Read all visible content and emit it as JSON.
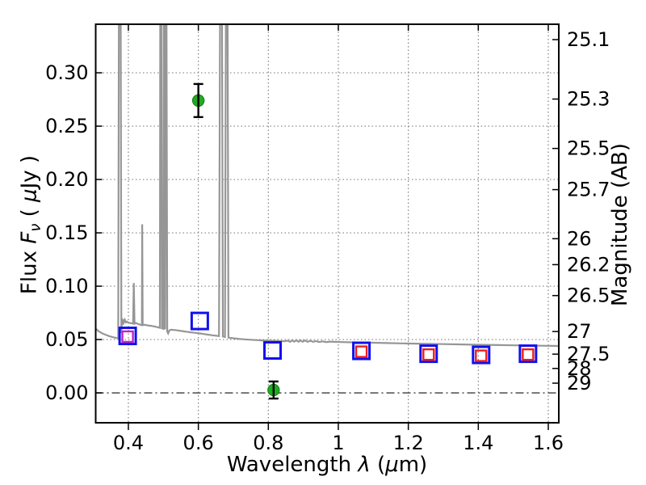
{
  "labels": {
    "xlabel": {
      "word": "Wavelength ",
      "lambda": "λ",
      "open": " (",
      "mu": "μ",
      "close": "m)"
    },
    "ylabel_left": {
      "word": "Flux ",
      "f": "F",
      "nu": "ν",
      "open": " ( ",
      "mu": "μ",
      "close": "Jy )"
    },
    "ylabel_right": {
      "text": "Magnitude (AB)"
    }
  },
  "chart_data": {
    "type": "line",
    "title": "",
    "xlabel": "Wavelength λ (μm)",
    "ylabel": "Flux Fν ( μJy )",
    "ylabel_right": "Magnitude (AB)",
    "xlim": [
      0.3066,
      1.63
    ],
    "ylim": [
      -0.028,
      0.3455
    ],
    "grid": "dotted",
    "colors": {
      "spectrum": "#969696",
      "grid": "#808080",
      "zero_line": "#3a3a3a",
      "green_points": "#22aa22",
      "blue_squares": "#1010ee",
      "red_squares": "#ee1c1c",
      "magenta_squares": "#c520c5",
      "errorbar": "#000000",
      "frame": "#000000"
    },
    "x_ticks": [
      {
        "v": 0.4,
        "label": "0.4"
      },
      {
        "v": 0.6,
        "label": "0.6"
      },
      {
        "v": 0.8,
        "label": "0.8"
      },
      {
        "v": 1.0,
        "label": "1"
      },
      {
        "v": 1.2,
        "label": "1.2"
      },
      {
        "v": 1.4,
        "label": "1.4"
      },
      {
        "v": 1.6,
        "label": "1.6"
      }
    ],
    "y_ticks_flux": [
      {
        "v": 0.0,
        "label": "0.00"
      },
      {
        "v": 0.05,
        "label": "0.05"
      },
      {
        "v": 0.1,
        "label": "0.10"
      },
      {
        "v": 0.15,
        "label": "0.15"
      },
      {
        "v": 0.2,
        "label": "0.20"
      },
      {
        "v": 0.25,
        "label": "0.25"
      },
      {
        "v": 0.3,
        "label": "0.30"
      }
    ],
    "y_ticks_mag": [
      {
        "label": "25.1",
        "flux": 0.3311
      },
      {
        "label": "25.3",
        "flux": 0.2754
      },
      {
        "label": "25.5",
        "flux": 0.2291
      },
      {
        "label": "25.7",
        "flux": 0.1905
      },
      {
        "label": "26",
        "flux": 0.1445
      },
      {
        "label": "26.2",
        "flux": 0.1202
      },
      {
        "label": "26.5",
        "flux": 0.0912
      },
      {
        "label": "27",
        "flux": 0.0575
      },
      {
        "label": "27.5",
        "flux": 0.0363
      },
      {
        "label": "28",
        "flux": 0.0229
      },
      {
        "label": "29",
        "flux": 0.0091
      }
    ],
    "series": [
      {
        "name": "model-spectrum",
        "type": "line",
        "color": "#969696",
        "points": [
          [
            0.307,
            0.06
          ],
          [
            0.315,
            0.0578
          ],
          [
            0.325,
            0.0558
          ],
          [
            0.335,
            0.0545
          ],
          [
            0.345,
            0.0532
          ],
          [
            0.355,
            0.0522
          ],
          [
            0.365,
            0.0515
          ],
          [
            0.371,
            0.0512
          ],
          [
            0.3735,
            0.45
          ],
          [
            0.3775,
            0.45
          ],
          [
            0.38,
            0.056
          ],
          [
            0.3815,
            0.07
          ],
          [
            0.383,
            0.064
          ],
          [
            0.385,
            0.069
          ],
          [
            0.387,
            0.066
          ],
          [
            0.39,
            0.0685
          ],
          [
            0.393,
            0.066
          ],
          [
            0.396,
            0.0668
          ],
          [
            0.4,
            0.0658
          ],
          [
            0.405,
            0.0655
          ],
          [
            0.41,
            0.0652
          ],
          [
            0.4135,
            0.065
          ],
          [
            0.4155,
            0.103
          ],
          [
            0.4175,
            0.0648
          ],
          [
            0.422,
            0.0655
          ],
          [
            0.428,
            0.0645
          ],
          [
            0.433,
            0.064
          ],
          [
            0.437,
            0.0635
          ],
          [
            0.4385,
            0.0635
          ],
          [
            0.4396,
            0.158
          ],
          [
            0.441,
            0.0635
          ],
          [
            0.447,
            0.0638
          ],
          [
            0.455,
            0.0632
          ],
          [
            0.465,
            0.0628
          ],
          [
            0.475,
            0.0622
          ],
          [
            0.485,
            0.0615
          ],
          [
            0.49,
            0.061
          ],
          [
            0.4914,
            0.45
          ],
          [
            0.4934,
            0.45
          ],
          [
            0.496,
            0.0605
          ],
          [
            0.5,
            0.06
          ],
          [
            0.5013,
            0.45
          ],
          [
            0.5033,
            0.45
          ],
          [
            0.505,
            0.0595
          ],
          [
            0.5062,
            0.45
          ],
          [
            0.5082,
            0.45
          ],
          [
            0.511,
            0.0575
          ],
          [
            0.5135,
            0.0558
          ],
          [
            0.517,
            0.0585
          ],
          [
            0.522,
            0.0592
          ],
          [
            0.53,
            0.059
          ],
          [
            0.54,
            0.0586
          ],
          [
            0.552,
            0.058
          ],
          [
            0.565,
            0.0574
          ],
          [
            0.578,
            0.0568
          ],
          [
            0.59,
            0.0563
          ],
          [
            0.603,
            0.0558
          ],
          [
            0.615,
            0.0552
          ],
          [
            0.628,
            0.0546
          ],
          [
            0.64,
            0.054
          ],
          [
            0.652,
            0.0535
          ],
          [
            0.659,
            0.0532
          ],
          [
            0.6628,
            0.45
          ],
          [
            0.6668,
            0.45
          ],
          [
            0.67,
            0.0528
          ],
          [
            0.676,
            0.0524
          ],
          [
            0.6795,
            0.45
          ],
          [
            0.6827,
            0.45
          ],
          [
            0.686,
            0.0518
          ],
          [
            0.695,
            0.0514
          ],
          [
            0.705,
            0.051
          ],
          [
            0.718,
            0.0506
          ],
          [
            0.732,
            0.0502
          ],
          [
            0.748,
            0.0498
          ],
          [
            0.765,
            0.0495
          ],
          [
            0.782,
            0.0492
          ],
          [
            0.8,
            0.049
          ],
          [
            0.815,
            0.0488
          ],
          [
            0.83,
            0.0486
          ],
          [
            0.845,
            0.0484
          ],
          [
            0.856,
            0.049
          ],
          [
            0.862,
            0.0478
          ],
          [
            0.868,
            0.0492
          ],
          [
            0.874,
            0.048
          ],
          [
            0.88,
            0.0494
          ],
          [
            0.886,
            0.0479
          ],
          [
            0.892,
            0.0491
          ],
          [
            0.898,
            0.048
          ],
          [
            0.905,
            0.0492
          ],
          [
            0.912,
            0.0478
          ],
          [
            0.92,
            0.0488
          ],
          [
            0.928,
            0.0478
          ],
          [
            0.936,
            0.0486
          ],
          [
            0.945,
            0.0477
          ],
          [
            0.955,
            0.0483
          ],
          [
            0.965,
            0.0476
          ],
          [
            0.975,
            0.0481
          ],
          [
            0.99,
            0.0478
          ],
          [
            1.01,
            0.0476
          ],
          [
            1.04,
            0.0474
          ],
          [
            1.07,
            0.0472
          ],
          [
            1.1,
            0.047
          ],
          [
            1.14,
            0.0467
          ],
          [
            1.18,
            0.0464
          ],
          [
            1.22,
            0.0462
          ],
          [
            1.26,
            0.046
          ],
          [
            1.3,
            0.0457
          ],
          [
            1.34,
            0.0455
          ],
          [
            1.38,
            0.0452
          ],
          [
            1.42,
            0.045
          ],
          [
            1.46,
            0.0448
          ],
          [
            1.5,
            0.0446
          ],
          [
            1.54,
            0.0444
          ],
          [
            1.58,
            0.0442
          ],
          [
            1.63,
            0.044
          ]
        ]
      },
      {
        "name": "observed-flux-green-circles",
        "type": "scatter",
        "marker": "circle",
        "color": "#22aa22",
        "points": [
          {
            "x": 0.6,
            "y": 0.274,
            "yerr": 0.0155
          },
          {
            "x": 0.815,
            "y": 0.0027,
            "yerr": 0.008
          }
        ]
      },
      {
        "name": "photometry-blue-squares",
        "type": "scatter",
        "marker": "square-open",
        "color": "#1010ee",
        "points": [
          {
            "x": 0.398,
            "y": 0.0534
          },
          {
            "x": 0.604,
            "y": 0.0674
          },
          {
            "x": 0.812,
            "y": 0.0398
          },
          {
            "x": 1.066,
            "y": 0.0394
          },
          {
            "x": 1.258,
            "y": 0.0367
          },
          {
            "x": 1.408,
            "y": 0.0356
          },
          {
            "x": 1.542,
            "y": 0.0367
          }
        ]
      },
      {
        "name": "photometry-magenta-squares",
        "type": "scatter",
        "marker": "square-open-small",
        "color": "#c520c5",
        "points": [
          {
            "x": 0.398,
            "y": 0.0527
          }
        ]
      },
      {
        "name": "photometry-red-squares",
        "type": "scatter",
        "marker": "square-open-small",
        "color": "#ee1c1c",
        "points": [
          {
            "x": 1.066,
            "y": 0.0386
          },
          {
            "x": 1.258,
            "y": 0.0359
          },
          {
            "x": 1.408,
            "y": 0.0348
          },
          {
            "x": 1.542,
            "y": 0.0359
          }
        ]
      }
    ]
  }
}
